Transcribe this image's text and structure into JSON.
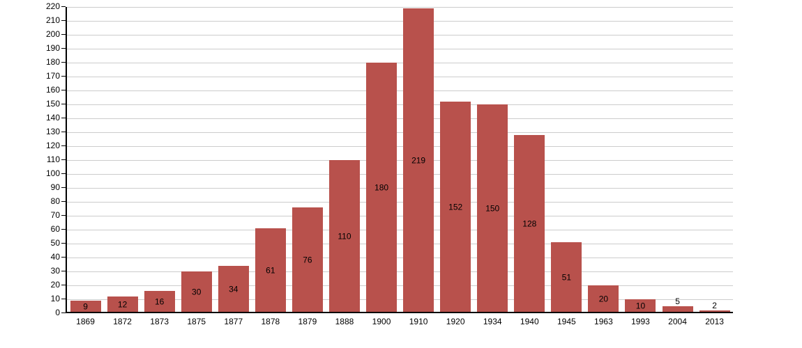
{
  "chart_data": {
    "type": "bar",
    "title": "",
    "xlabel": "",
    "ylabel": "",
    "categories": [
      "1869",
      "1872",
      "1873",
      "1875",
      "1877",
      "1878",
      "1879",
      "1888",
      "1900",
      "1910",
      "1920",
      "1934",
      "1940",
      "1945",
      "1963",
      "1993",
      "2004",
      "2013"
    ],
    "values": [
      9,
      12,
      16,
      30,
      34,
      61,
      76,
      110,
      180,
      219,
      152,
      150,
      128,
      51,
      20,
      10,
      5,
      2
    ],
    "ylim": [
      0,
      220
    ],
    "ytick_step": 10,
    "yticks": [
      0,
      10,
      20,
      30,
      40,
      50,
      60,
      70,
      80,
      90,
      100,
      110,
      120,
      130,
      140,
      150,
      160,
      170,
      180,
      190,
      200,
      210,
      220
    ],
    "grid": true,
    "legend": "none",
    "value_labels_shown": true,
    "colors": {
      "bar": "#b8514c",
      "grid": "#cccccc",
      "axis": "#000000",
      "tick_label": "#000000",
      "value_label": "#000000",
      "background": "#ffffff"
    }
  }
}
